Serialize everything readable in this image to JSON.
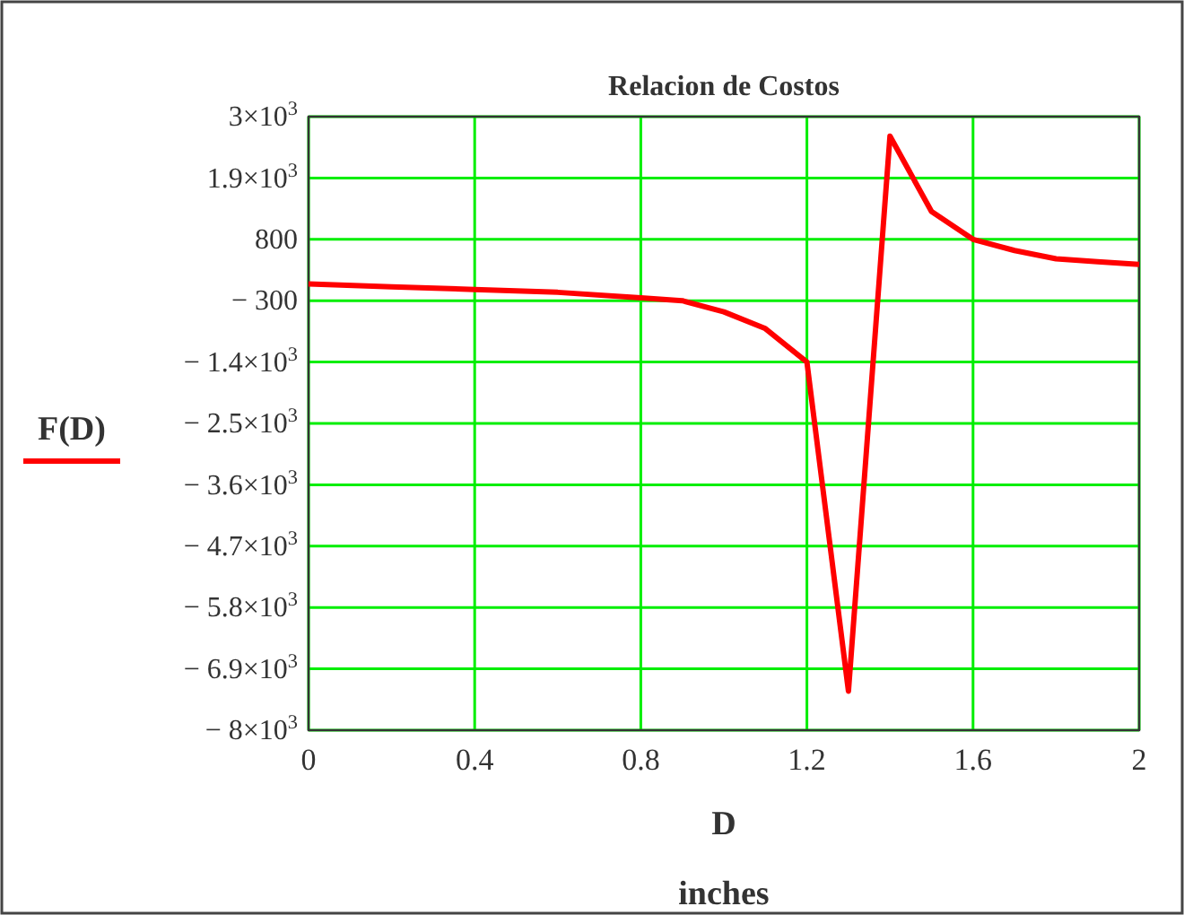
{
  "chart_data": {
    "type": "line",
    "title": "Relacion de Costos",
    "xlabel": "D",
    "annotations": [
      "inches"
    ],
    "x": [
      0,
      0.2,
      0.4,
      0.6,
      0.8,
      0.9,
      1.0,
      1.1,
      1.2,
      1.3,
      1.4,
      1.5,
      1.6,
      1.7,
      1.8,
      1.9,
      2.0
    ],
    "series": [
      {
        "name": "F(D)",
        "color": "#ff0000",
        "values": [
          0,
          -50,
          -100,
          -150,
          -250,
          -300,
          -500,
          -800,
          -1400,
          -7300,
          2650,
          1300,
          800,
          600,
          450,
          400,
          350
        ]
      }
    ],
    "xlim": [
      0,
      2
    ],
    "xticks": [
      0,
      0.4,
      0.8,
      1.2,
      1.6,
      2
    ],
    "ylim": [
      -8000,
      3000
    ],
    "yticks": [
      {
        "value": 3000,
        "label": "3×10$^{3}$"
      },
      {
        "value": 1900,
        "label": "1.9×10$^{3}$"
      },
      {
        "value": 800,
        "label": "800"
      },
      {
        "value": -300,
        "label": "− 300"
      },
      {
        "value": -1400,
        "label": "− 1.4×10$^{3}$"
      },
      {
        "value": -2500,
        "label": "− 2.5×10$^{3}$"
      },
      {
        "value": -3600,
        "label": "− 3.6×10$^{3}$"
      },
      {
        "value": -4700,
        "label": "− 4.7×10$^{3}$"
      },
      {
        "value": -5800,
        "label": "− 5.8×10$^{3}$"
      },
      {
        "value": -6900,
        "label": "− 6.9×10$^{3}$"
      },
      {
        "value": -8000,
        "label": "− 8×10$^{3}$"
      }
    ],
    "grid": true,
    "legend": "left",
    "line_style": "solid",
    "marker": "none"
  }
}
